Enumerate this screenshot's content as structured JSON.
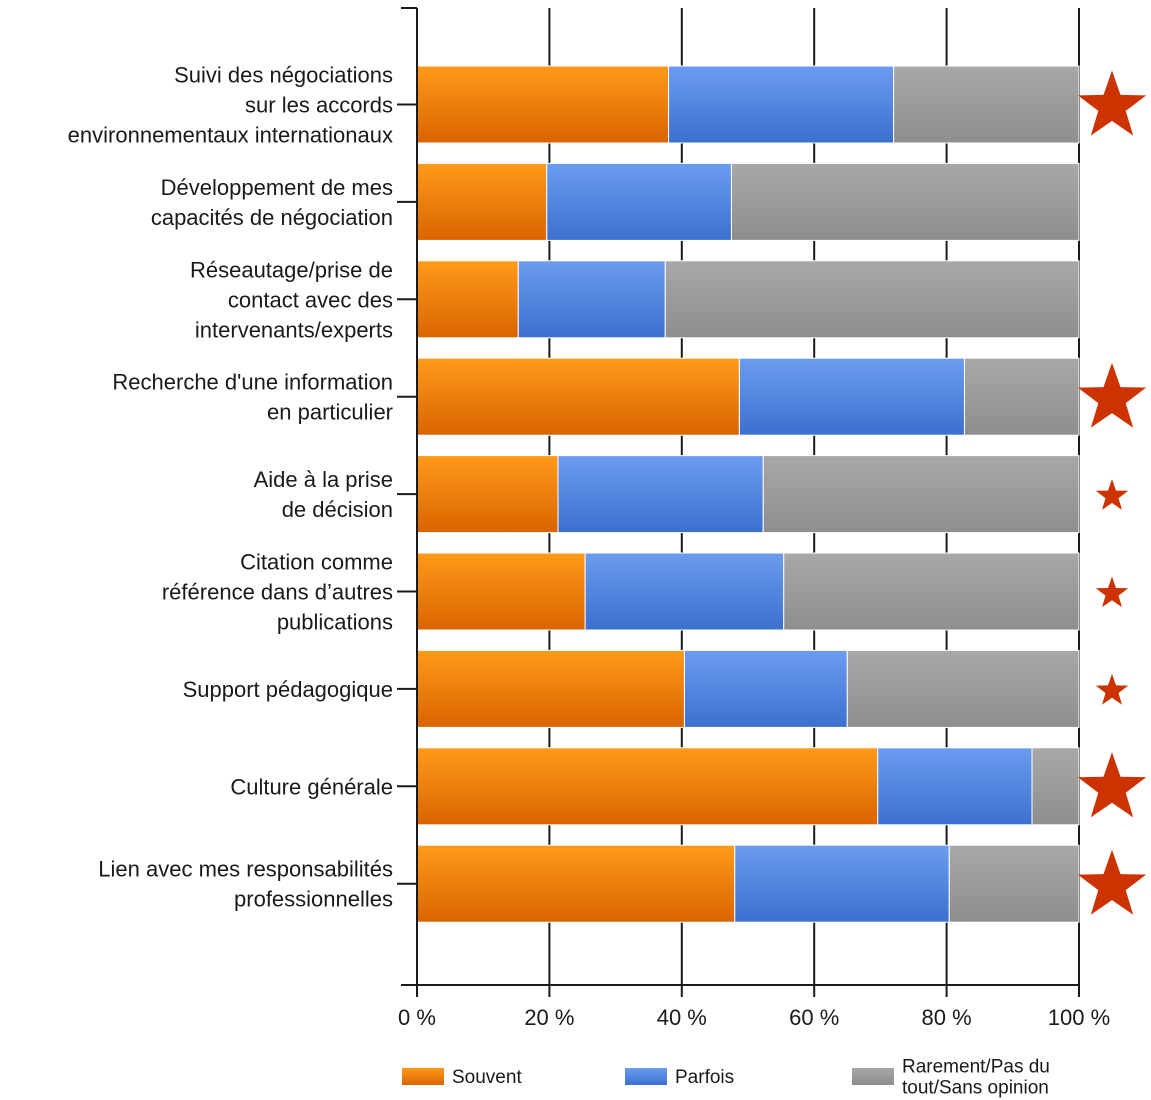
{
  "chart_data": {
    "type": "bar",
    "orientation": "horizontal",
    "stacked": true,
    "categories": [
      [
        "Suivi des négociations",
        "sur les accords",
        "environnementaux internationaux"
      ],
      [
        "Développement de mes",
        "capacités de négociation"
      ],
      [
        "Réseautage/prise de",
        "contact avec des",
        "intervenants/experts"
      ],
      [
        "Recherche d'une information",
        "en particulier"
      ],
      [
        "Aide à la prise",
        "de décision"
      ],
      [
        "Citation comme",
        "référence dans d’autres",
        "publications"
      ],
      [
        "Support pédagogique"
      ],
      [
        "Culture générale"
      ],
      [
        "Lien avec mes responsabilités",
        "professionnelles"
      ]
    ],
    "series": [
      {
        "name": "Souvent",
        "color": "#ee7a00",
        "values": [
          38,
          19.6,
          15.3,
          48.7,
          21.3,
          25.4,
          40.4,
          69.6,
          48
        ]
      },
      {
        "name": "Parfois",
        "color": "#4a82e0",
        "values": [
          34,
          27.9,
          22.2,
          34,
          31,
          30,
          24.6,
          23.3,
          32.4
        ]
      },
      {
        "name": "Rarement/Pas du tout/Sans opinion",
        "legend_lines": [
          "Rarement/Pas du",
          "tout/Sans opinion"
        ],
        "color": "#9b9b9b",
        "values": [
          28,
          52.5,
          62.5,
          17.3,
          47.7,
          44.6,
          35,
          7.1,
          19.6
        ]
      }
    ],
    "xticks": [
      "0 %",
      "20 %",
      "40 %",
      "60 %",
      "80 %",
      "100 %"
    ],
    "xlim": [
      0,
      100
    ],
    "grid": true,
    "legend_position": "bottom",
    "stars": [
      {
        "category_index": 0,
        "size": "large"
      },
      {
        "category_index": 3,
        "size": "large"
      },
      {
        "category_index": 4,
        "size": "small"
      },
      {
        "category_index": 5,
        "size": "small"
      },
      {
        "category_index": 6,
        "size": "small"
      },
      {
        "category_index": 7,
        "size": "large"
      },
      {
        "category_index": 8,
        "size": "large"
      }
    ],
    "star_color": "#cc3300"
  }
}
